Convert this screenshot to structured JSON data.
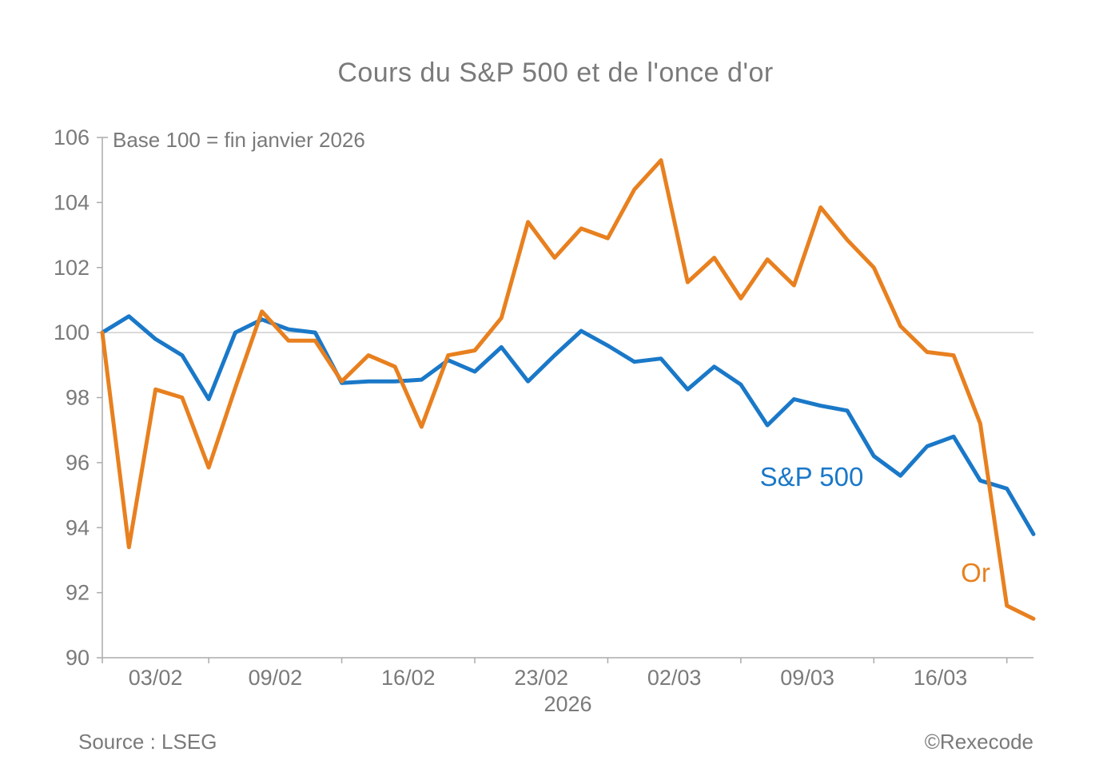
{
  "title": "Cours du S&P 500 et de l'once d'or",
  "annotation": "Base 100 = fin janvier 2026",
  "source": "Source : LSEG",
  "copyright": "©Rexecode",
  "colors": {
    "sp500_line": "#1a78c8",
    "or_line": "#e8801f",
    "text_gray": "#7a7a7a",
    "axis_gray": "#ababab",
    "gridline_gray": "#c4c4c4"
  },
  "chart_data": {
    "type": "line",
    "title": "Cours du S&P 500 et de l'once d'or",
    "subtitle": "Base 100 = fin janvier 2026",
    "xlabel": "2026",
    "ylabel": "",
    "ylim": [
      90,
      106
    ],
    "y_ticks": [
      90,
      92,
      94,
      96,
      98,
      100,
      102,
      104,
      106
    ],
    "gridline_at": 100,
    "grid": "only horizontal line at 100",
    "legend_position": "labels next to lines",
    "x_tick_labels": [
      "03/02",
      "09/02",
      "16/02",
      "23/02",
      "02/03",
      "09/03",
      "16/03"
    ],
    "x_tick_boundary_indices": [
      0,
      4,
      9,
      14,
      19,
      24,
      29,
      34
    ],
    "dates": [
      "30/01",
      "02/02",
      "03/02",
      "04/02",
      "05/02",
      "06/02",
      "09/02",
      "10/02",
      "11/02",
      "12/02",
      "13/02",
      "16/02",
      "17/02",
      "18/02",
      "19/02",
      "20/02",
      "23/02",
      "24/02",
      "25/02",
      "26/02",
      "27/02",
      "02/03",
      "03/03",
      "04/03",
      "05/03",
      "06/03",
      "09/03",
      "10/03",
      "11/03",
      "12/03",
      "13/03",
      "16/03",
      "17/03",
      "18/03",
      "19/03",
      "20/03"
    ],
    "series": [
      {
        "name": "S&P 500",
        "color": "#1a78c8",
        "values": [
          100.0,
          100.5,
          99.8,
          99.3,
          97.95,
          100.0,
          100.4,
          100.1,
          100.0,
          98.45,
          98.5,
          98.5,
          98.55,
          99.15,
          98.8,
          99.55,
          98.5,
          99.3,
          100.05,
          99.6,
          99.1,
          99.2,
          98.25,
          98.95,
          98.4,
          97.15,
          97.95,
          97.75,
          97.6,
          96.2,
          95.6,
          96.5,
          96.8,
          95.45,
          95.2,
          93.8
        ]
      },
      {
        "name": "Or",
        "color": "#e8801f",
        "values": [
          100.0,
          93.4,
          98.25,
          98.0,
          95.85,
          98.3,
          100.65,
          99.75,
          99.75,
          98.5,
          99.3,
          98.95,
          97.1,
          99.3,
          99.45,
          100.45,
          103.4,
          102.3,
          103.2,
          102.9,
          104.4,
          105.3,
          101.55,
          102.3,
          101.05,
          102.25,
          101.45,
          103.85,
          102.85,
          102.0,
          100.2,
          99.4,
          99.3,
          97.2,
          91.6,
          91.2
        ]
      }
    ]
  }
}
